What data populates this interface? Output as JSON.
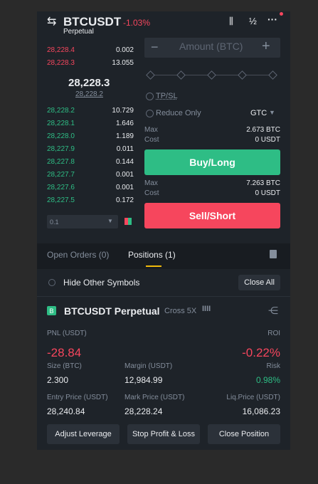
{
  "header": {
    "symbol": "BTCUSDT",
    "change": "-1.03%",
    "subtitle": "Perpetual"
  },
  "orderbook": {
    "asks": [
      [
        "28,228.4",
        "0.002"
      ],
      [
        "28,228.3",
        "13.055"
      ]
    ],
    "last": "28,228.3",
    "mark": "28,228.2",
    "bids": [
      [
        "28,228.2",
        "10.729"
      ],
      [
        "28,228.1",
        "1.646"
      ],
      [
        "28,228.0",
        "1.189"
      ],
      [
        "28,227.9",
        "0.011"
      ],
      [
        "28,227.8",
        "0.144"
      ],
      [
        "28,227.7",
        "0.001"
      ],
      [
        "28,227.6",
        "0.001"
      ],
      [
        "28,227.5",
        "0.172"
      ]
    ],
    "depth": "0.1"
  },
  "form": {
    "amount": "Amount (BTC)",
    "tpsl": "TP/SL",
    "reduce_only": "Reduce Only",
    "tif": "GTC",
    "buy": {
      "max_label": "Max",
      "max": "2.673 BTC",
      "cost_label": "Cost",
      "cost": "0 USDT",
      "button": "Buy/Long"
    },
    "sell": {
      "max_label": "Max",
      "max": "7.263 BTC",
      "cost_label": "Cost",
      "cost": "0 USDT",
      "button": "Sell/Short"
    }
  },
  "tabs": [
    "Open Orders (0)",
    "Positions (1)"
  ],
  "filter": {
    "hide": "Hide Other Symbols",
    "close_all": "Close All"
  },
  "position": {
    "badge": "B",
    "symbol": "BTCUSDT Perpetual",
    "mode": "Cross 5X",
    "fields": [
      {
        "label": "PNL (USDT)",
        "value": "-28.84"
      },
      {
        "label": "ROI",
        "value": "-0.22%"
      },
      {
        "label": "Size (BTC)",
        "value": "2.300"
      },
      {
        "label": "Margin (USDT)",
        "value": "12,984.99"
      },
      {
        "label": "Risk",
        "value": "0.98%"
      },
      {
        "label": "Entry Price (USDT)",
        "value": "28,240.84"
      },
      {
        "label": "Mark Price (USDT)",
        "value": "28,228.24"
      },
      {
        "label": "Liq.Price (USDT)",
        "value": "16,086.23"
      }
    ],
    "actions": [
      "Adjust Leverage",
      "Stop Profit & Loss",
      "Close Position"
    ]
  }
}
